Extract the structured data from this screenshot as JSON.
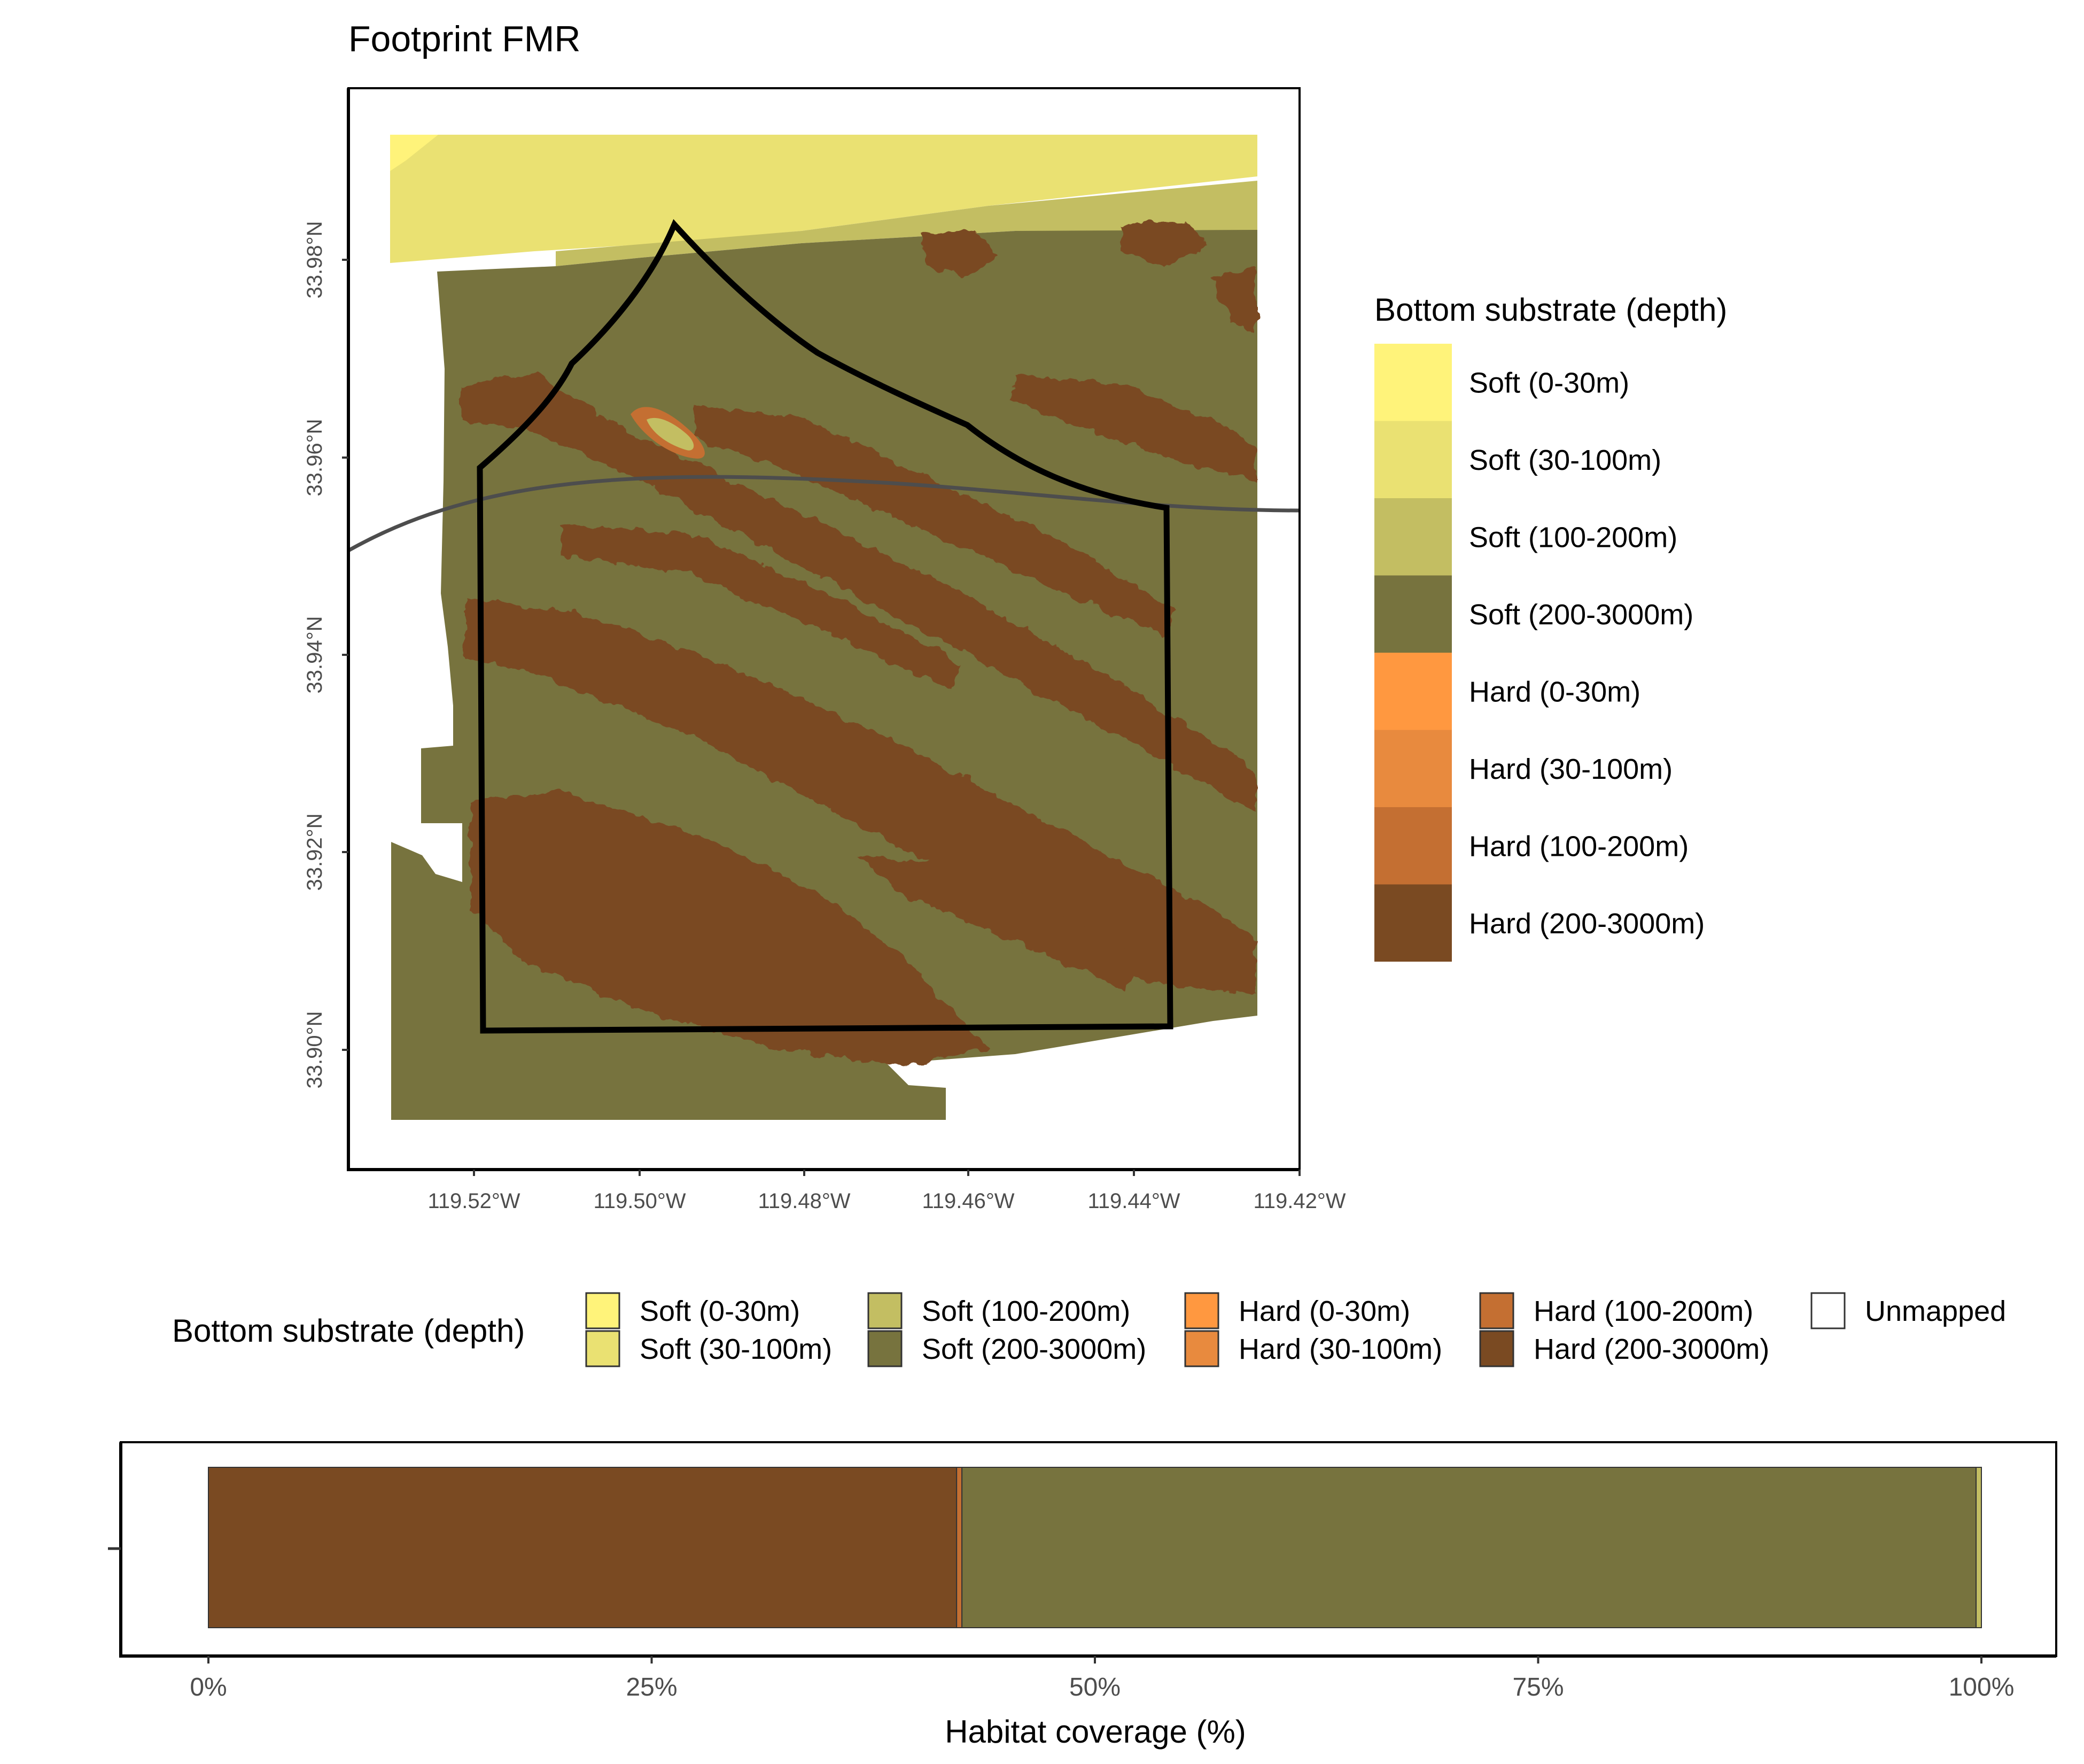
{
  "map": {
    "title": "Footprint FMR",
    "lat_ticks": [
      "33.98°N",
      "33.96°N",
      "33.94°N",
      "33.92°N",
      "33.90°N"
    ],
    "lon_ticks": [
      "119.52°W",
      "119.50°W",
      "119.48°W",
      "119.46°W",
      "119.44°W",
      "119.42°W"
    ],
    "lat_range": [
      33.8885,
      33.9965
    ],
    "lon_range": [
      -119.5335,
      -119.4185
    ]
  },
  "legend_right": {
    "title": "Bottom substrate (depth)",
    "items": [
      {
        "label": "Soft (0-30m)",
        "color": "#FFF37A"
      },
      {
        "label": "Soft (30-100m)",
        "color": "#EAE172"
      },
      {
        "label": "Soft (100-200m)",
        "color": "#C3BE62"
      },
      {
        "label": "Soft (200-3000m)",
        "color": "#77733E"
      },
      {
        "label": "Hard (0-30m)",
        "color": "#FF9840"
      },
      {
        "label": "Hard (30-100m)",
        "color": "#E88A3E"
      },
      {
        "label": "Hard (100-200m)",
        "color": "#C46F32"
      },
      {
        "label": "Hard (200-3000m)",
        "color": "#7A4A22"
      }
    ]
  },
  "legend_bottom": {
    "title": "Bottom substrate (depth)",
    "items": [
      {
        "label": "Soft (0-30m)",
        "color": "#FFF37A"
      },
      {
        "label": "Soft (30-100m)",
        "color": "#EAE172"
      },
      {
        "label": "Soft (100-200m)",
        "color": "#C3BE62"
      },
      {
        "label": "Soft (200-3000m)",
        "color": "#77733E"
      },
      {
        "label": "Hard (0-30m)",
        "color": "#FF9840"
      },
      {
        "label": "Hard (30-100m)",
        "color": "#E88A3E"
      },
      {
        "label": "Hard (100-200m)",
        "color": "#C46F32"
      },
      {
        "label": "Hard (200-3000m)",
        "color": "#7A4A22"
      },
      {
        "label": "Unmapped",
        "color": "#FFFFFF"
      }
    ]
  },
  "chart_data": {
    "type": "bar",
    "orientation": "horizontal",
    "stacked": true,
    "xlabel": "Habitat coverage (%)",
    "x_ticks": [
      "0%",
      "25%",
      "50%",
      "75%",
      "100%"
    ],
    "xlim": [
      0,
      100
    ],
    "series": [
      {
        "name": "Hard (200-3000m)",
        "value": 42.2,
        "color": "#7A4A22"
      },
      {
        "name": "Hard (100-200m)",
        "value": 0.3,
        "color": "#C46F32"
      },
      {
        "name": "Soft (200-3000m)",
        "value": 57.2,
        "color": "#77733E"
      },
      {
        "name": "Soft (100-200m)",
        "value": 0.3,
        "color": "#C3BE62"
      }
    ]
  }
}
